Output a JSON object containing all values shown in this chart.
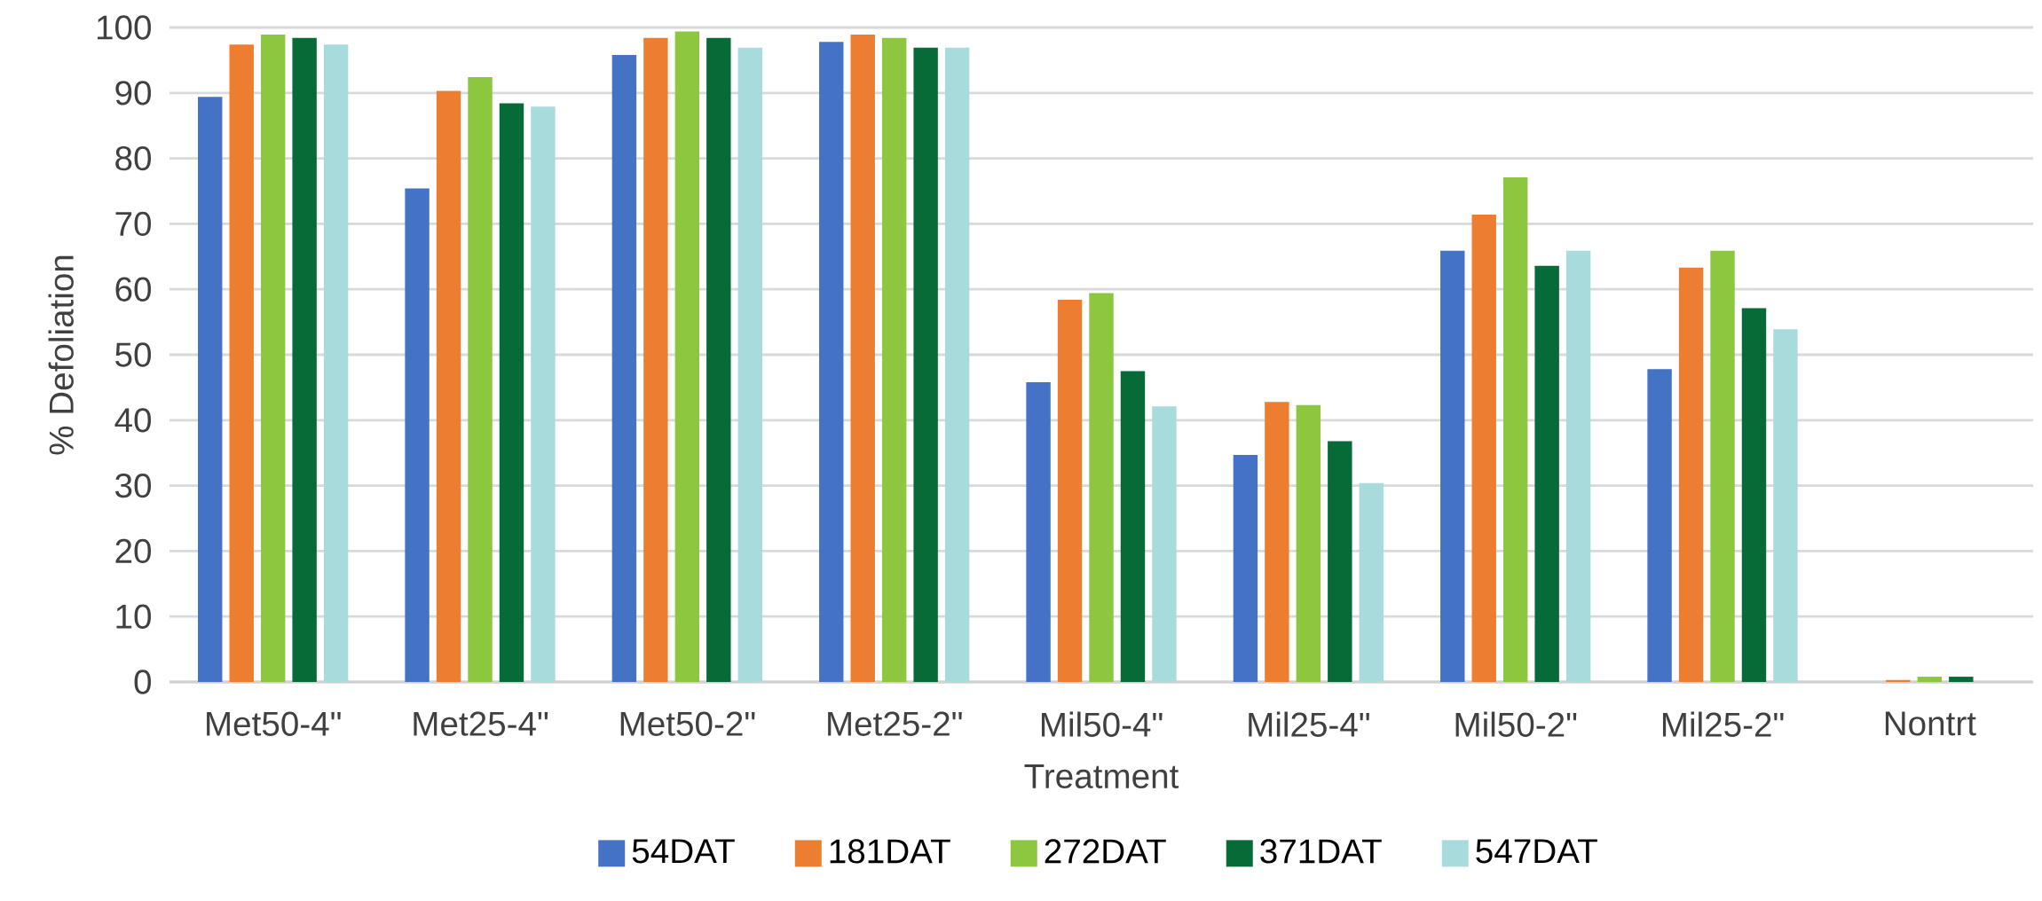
{
  "chart_data": {
    "type": "bar",
    "xlabel": "Treatment",
    "ylabel": "% Defoliation",
    "categories": [
      "Met50-4\"",
      "Met25-4\"",
      "Met50-2\"",
      "Met25-2\"",
      "Mil50-4\"",
      "Mil25-4\"",
      "Mil50-2\"",
      "Mil25-2\"",
      "Nontrt"
    ],
    "series": [
      {
        "name": "54DAT",
        "color": "#4472c4",
        "values": [
          89.4,
          75.4,
          95.8,
          97.8,
          45.8,
          34.7,
          65.9,
          47.8,
          0
        ]
      },
      {
        "name": "181DAT",
        "color": "#ed7d31",
        "values": [
          97.4,
          90.3,
          98.4,
          98.9,
          58.4,
          42.8,
          71.4,
          63.3,
          0.3
        ]
      },
      {
        "name": "272DAT",
        "color": "#8dc63f",
        "values": [
          98.9,
          92.4,
          99.4,
          98.4,
          59.4,
          42.3,
          77.1,
          65.9,
          0.8
        ]
      },
      {
        "name": "371DAT",
        "color": "#076b38",
        "values": [
          98.4,
          88.4,
          98.4,
          96.9,
          47.5,
          36.8,
          63.6,
          57.1,
          0.8
        ]
      },
      {
        "name": "547DAT",
        "color": "#a8dcdc",
        "values": [
          97.4,
          87.9,
          96.9,
          96.9,
          42.1,
          30.4,
          65.9,
          53.9,
          null
        ]
      }
    ],
    "ylim": [
      0,
      100
    ],
    "yticks": [
      0,
      10,
      20,
      30,
      40,
      50,
      60,
      70,
      80,
      90,
      100
    ],
    "grid": "y",
    "legend": "bottom"
  }
}
